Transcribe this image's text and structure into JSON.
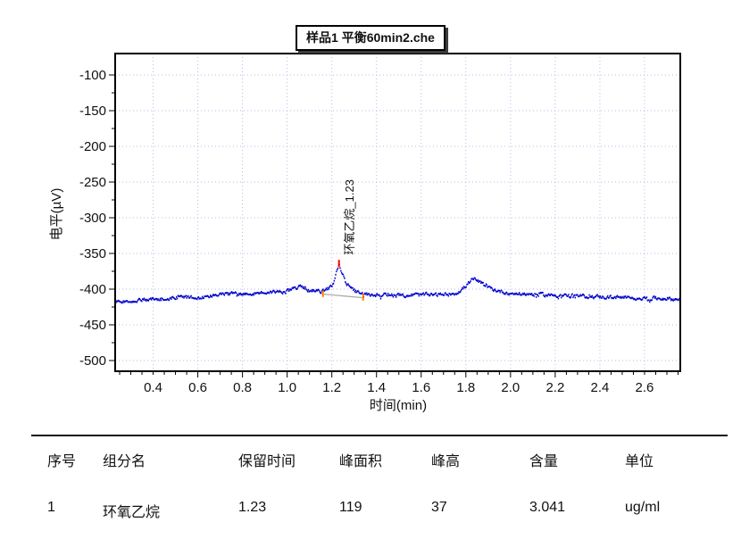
{
  "title_box": {
    "text": "样品1 平衡60min2.che"
  },
  "chart_data": {
    "type": "line",
    "title": "样品1 平衡60min2.che",
    "xlabel": "时间(min)",
    "ylabel": "电平(µV)",
    "xlim": [
      0.23,
      2.76
    ],
    "ylim": [
      -515,
      -70
    ],
    "x_major_ticks": [
      0.4,
      0.6,
      0.8,
      1.0,
      1.2,
      1.4,
      1.6,
      1.8,
      2.0,
      2.2,
      2.4,
      2.6
    ],
    "x_minor_step": 0.05,
    "y_major_ticks": [
      -500,
      -450,
      -400,
      -350,
      -300,
      -250,
      -200,
      -150,
      -100
    ],
    "y_minor_step": 25,
    "grid_style": "dotted",
    "legend": "none",
    "colors": {
      "trace": "#0000cd",
      "grid": "#b9b9ea",
      "axis": "#000000",
      "peak_marker": "#ff8000",
      "apex_marker": "#ff0000",
      "peak_baseline": "#aaaaaa"
    },
    "noise_uv": 2.1,
    "signal_anchors": [
      [
        0.23,
        -417
      ],
      [
        0.3,
        -416
      ],
      [
        0.38,
        -415
      ],
      [
        0.45,
        -413
      ],
      [
        0.52,
        -411
      ],
      [
        0.58,
        -412
      ],
      [
        0.64,
        -410
      ],
      [
        0.7,
        -408
      ],
      [
        0.76,
        -406
      ],
      [
        0.82,
        -407
      ],
      [
        0.88,
        -405
      ],
      [
        0.94,
        -404
      ],
      [
        1.0,
        -403
      ],
      [
        1.04,
        -398
      ],
      [
        1.07,
        -396
      ],
      [
        1.1,
        -402
      ],
      [
        1.13,
        -403
      ],
      [
        1.16,
        -403
      ],
      [
        1.19,
        -398
      ],
      [
        1.21,
        -388
      ],
      [
        1.22,
        -377
      ],
      [
        1.232,
        -366
      ],
      [
        1.245,
        -377
      ],
      [
        1.26,
        -389
      ],
      [
        1.28,
        -398
      ],
      [
        1.31,
        -404
      ],
      [
        1.34,
        -407
      ],
      [
        1.42,
        -408
      ],
      [
        1.5,
        -409
      ],
      [
        1.58,
        -408
      ],
      [
        1.66,
        -408
      ],
      [
        1.72,
        -407
      ],
      [
        1.76,
        -405
      ],
      [
        1.79,
        -399
      ],
      [
        1.81,
        -392
      ],
      [
        1.83,
        -386
      ],
      [
        1.845,
        -387
      ],
      [
        1.86,
        -390
      ],
      [
        1.88,
        -394
      ],
      [
        1.91,
        -399
      ],
      [
        1.95,
        -403
      ],
      [
        2.0,
        -406
      ],
      [
        2.08,
        -407
      ],
      [
        2.16,
        -408
      ],
      [
        2.25,
        -409
      ],
      [
        2.33,
        -410
      ],
      [
        2.42,
        -411
      ],
      [
        2.52,
        -412
      ],
      [
        2.62,
        -413
      ],
      [
        2.7,
        -413
      ],
      [
        2.76,
        -415
      ]
    ],
    "peaks": [
      {
        "name": "环氧乙烷",
        "label": "环氧乙烷_1.23",
        "retention_min": 1.23,
        "apex_uv": -366,
        "start_min": 1.16,
        "end_min": 1.34,
        "baseline_start_uv": -407,
        "baseline_end_uv": -412
      }
    ]
  },
  "table": {
    "headers": [
      "序号",
      "组分名",
      "保留时间",
      "峰面积",
      "峰高",
      "含量",
      "单位"
    ],
    "rows": [
      {
        "cells": [
          "1",
          "环氧乙烷",
          "1.23",
          "119",
          "37",
          "3.041",
          "ug/ml"
        ]
      }
    ]
  }
}
